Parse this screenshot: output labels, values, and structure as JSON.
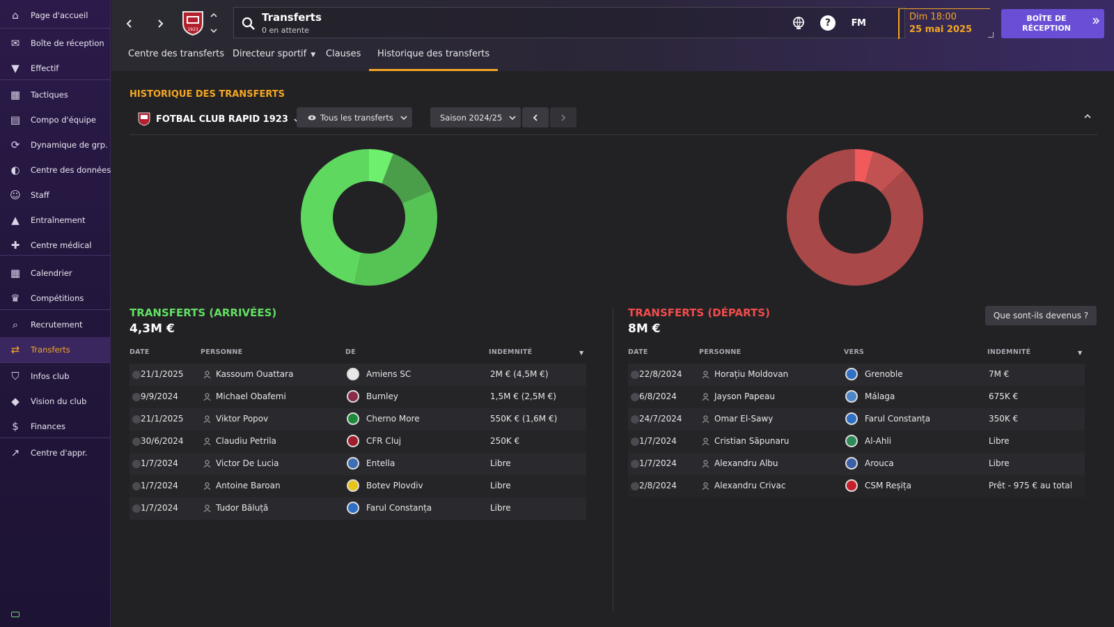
{
  "colors": {
    "accent": "#f5a623",
    "arrivals": "#63e063",
    "departures": "#f24c4c",
    "inbox": "#6a4fd6"
  },
  "sidebar": {
    "items": [
      {
        "label": "Page d'accueil",
        "icon": "home-icon"
      },
      {
        "label": "Boîte de réception",
        "icon": "inbox-icon"
      },
      {
        "label": "Effectif",
        "icon": "shirt-icon"
      },
      {
        "label": "Tactiques",
        "icon": "tactics-icon"
      },
      {
        "label": "Compo d'équipe",
        "icon": "clipboard-icon"
      },
      {
        "label": "Dynamique de grp.",
        "icon": "dynamics-icon"
      },
      {
        "label": "Centre des données",
        "icon": "data-icon"
      },
      {
        "label": "Staff",
        "icon": "staff-icon"
      },
      {
        "label": "Entraînement",
        "icon": "training-icon"
      },
      {
        "label": "Centre médical",
        "icon": "medical-icon"
      },
      {
        "label": "Calendrier",
        "icon": "calendar-icon"
      },
      {
        "label": "Compétitions",
        "icon": "trophy-icon"
      },
      {
        "label": "Recrutement",
        "icon": "scouting-icon"
      },
      {
        "label": "Transferts",
        "icon": "transfers-icon",
        "active": true
      },
      {
        "label": "Infos club",
        "icon": "shield-icon"
      },
      {
        "label": "Vision du club",
        "icon": "vision-icon"
      },
      {
        "label": "Finances",
        "icon": "finances-icon"
      },
      {
        "label": "Centre d'appr.",
        "icon": "development-icon"
      }
    ]
  },
  "header": {
    "search_title": "Transferts",
    "search_subtitle": "0 en attente",
    "fm_logo": "FM",
    "date_day": "Dim 18:00",
    "date_date": "25 mai 2025",
    "inbox_label": "BOÎTE DE RÉCEPTION",
    "club_badge_text": "1923"
  },
  "subnav": {
    "tabs": [
      {
        "label": "Centre des transferts"
      },
      {
        "label": "Directeur sportif"
      },
      {
        "label": "Clauses"
      },
      {
        "label": "Historique des transferts",
        "active": true
      }
    ]
  },
  "page": {
    "title": "HISTORIQUE DES TRANSFERTS",
    "club_filter": "FOTBAL CLUB RAPID 1923",
    "transfer_filter": "Tous les transferts",
    "season_filter": "Saison 2024/25"
  },
  "arrivals": {
    "title": "TRANSFERTS (ARRIVÉES)",
    "total": "4,3M €",
    "headers": {
      "date": "DATE",
      "person": "PERSONNE",
      "from": "DE",
      "fee": "INDEMNITÉ"
    },
    "rows": [
      {
        "date": "21/1/2025",
        "person": "Kassoum Ouattara",
        "club": "Amiens SC",
        "fee": "2M € (4,5M €)",
        "crest": "#e8e8e8"
      },
      {
        "date": "9/9/2024",
        "person": "Michael Obafemi",
        "club": "Burnley",
        "fee": "1,5M € (2,5M €)",
        "crest": "#8a2b4a"
      },
      {
        "date": "21/1/2025",
        "person": "Viktor Popov",
        "club": "Cherno More",
        "fee": "550K € (1,6M €)",
        "crest": "#1e8a3c"
      },
      {
        "date": "30/6/2024",
        "person": "Claudiu Petrila",
        "club": "CFR Cluj",
        "fee": "250K €",
        "crest": "#a11d2b"
      },
      {
        "date": "1/7/2024",
        "person": "Victor De Lucia",
        "club": "Entella",
        "fee": "Libre",
        "crest": "#3c6fb4"
      },
      {
        "date": "1/7/2024",
        "person": "Antoine Baroan",
        "club": "Botev Plovdiv",
        "fee": "Libre",
        "crest": "#e8c41a"
      },
      {
        "date": "1/7/2024",
        "person": "Tudor Băluță",
        "club": "Farul Constanța",
        "fee": "Libre",
        "crest": "#2f6fc4"
      }
    ]
  },
  "departures": {
    "title": "TRANSFERTS (DÉPARTS)",
    "total": "8M €",
    "whatif_button": "Que sont-ils devenus ?",
    "headers": {
      "date": "DATE",
      "person": "PERSONNE",
      "to": "VERS",
      "fee": "INDEMNITÉ"
    },
    "rows": [
      {
        "date": "22/8/2024",
        "person": "Horațiu Moldovan",
        "club": "Grenoble",
        "fee": "7M €",
        "crest": "#2f6fc4"
      },
      {
        "date": "6/8/2024",
        "person": "Jayson Papeau",
        "club": "Málaga",
        "fee": "675K €",
        "crest": "#4a86c8"
      },
      {
        "date": "24/7/2024",
        "person": "Omar El-Sawy",
        "club": "Farul Constanța",
        "fee": "350K €",
        "crest": "#2f6fc4"
      },
      {
        "date": "1/7/2024",
        "person": "Cristian Săpunaru",
        "club": "Al-Ahli",
        "fee": "Libre",
        "crest": "#2e8b57"
      },
      {
        "date": "1/7/2024",
        "person": "Alexandru Albu",
        "club": "Arouca",
        "fee": "Libre",
        "crest": "#3a5fa8"
      },
      {
        "date": "2/8/2024",
        "person": "Alexandru Crivac",
        "club": "CSM Reșița",
        "fee": "Prêt - 975 € au total",
        "crest": "#c8202a"
      }
    ]
  },
  "chart_data": [
    {
      "type": "pie",
      "categories": [
        "Kassoum Ouattara",
        "Michael Obafemi",
        "Viktor Popov",
        "Claudiu Petrila"
      ],
      "values": [
        2,
        1.5,
        0.55,
        0.25
      ],
      "colors": [
        "#5fd85f",
        "#55c455",
        "#4a9e4a",
        "#6ef06e"
      ]
    },
    {
      "type": "pie",
      "categories": [
        "Horațiu Moldovan",
        "Jayson Papeau",
        "Omar El-Sawy"
      ],
      "values": [
        7,
        0.675,
        0.35
      ],
      "colors": [
        "#a84848",
        "#c25252",
        "#f05a5a"
      ]
    }
  ]
}
